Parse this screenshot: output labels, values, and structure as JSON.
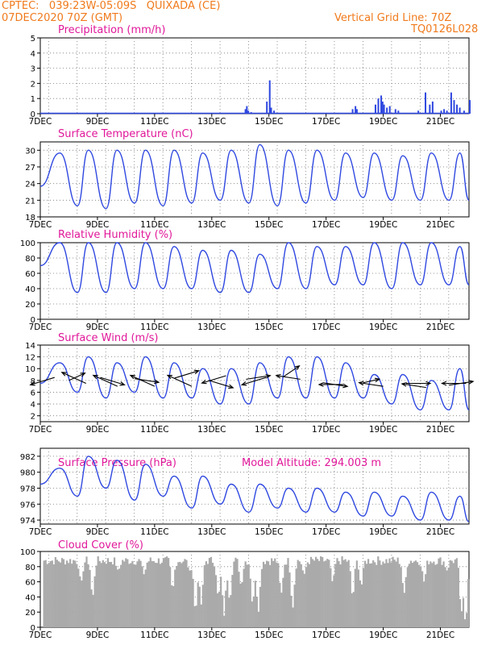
{
  "header": {
    "line1": "CPTEC:   039:23W-05:09S   QUIXADA (CE)",
    "line2_left": "07DEC2020 70Z (GMT)",
    "line2_right": "Vertical Grid Line: 70Z",
    "line3_right": "TQ0126L028"
  },
  "colors": {
    "series": "#2f48e0",
    "cloud": "#aaaaaa",
    "title": "#e0189a",
    "header": "#f07a1c"
  },
  "chart_data": [
    {
      "type": "bar",
      "title": "Precipitation (mm/h)",
      "x_ticks": [
        "7DEC",
        "9DEC",
        "11DEC",
        "13DEC",
        "15DEC",
        "17DEC",
        "19DEC",
        "21DEC"
      ],
      "x_day_range": [
        7,
        22
      ],
      "ylim": [
        0,
        5
      ],
      "yticks": [
        0,
        1,
        2,
        3,
        4,
        5
      ],
      "events": [
        [
          14.15,
          0.3
        ],
        [
          14.2,
          0.5
        ],
        [
          14.25,
          0.2
        ],
        [
          14.35,
          0.1
        ],
        [
          14.9,
          0.8
        ],
        [
          15.0,
          2.2
        ],
        [
          15.05,
          0.4
        ],
        [
          15.15,
          0.2
        ],
        [
          17.9,
          0.3
        ],
        [
          18.0,
          0.5
        ],
        [
          18.05,
          0.3
        ],
        [
          18.7,
          0.6
        ],
        [
          18.8,
          1.0
        ],
        [
          18.9,
          1.2
        ],
        [
          18.95,
          0.8
        ],
        [
          19.0,
          0.6
        ],
        [
          19.1,
          0.4
        ],
        [
          19.2,
          0.5
        ],
        [
          19.4,
          0.3
        ],
        [
          19.5,
          0.2
        ],
        [
          20.2,
          0.2
        ],
        [
          20.45,
          1.4
        ],
        [
          20.6,
          0.6
        ],
        [
          20.7,
          0.8
        ],
        [
          21.0,
          0.2
        ],
        [
          21.1,
          0.3
        ],
        [
          21.2,
          0.2
        ],
        [
          21.35,
          1.4
        ],
        [
          21.45,
          0.9
        ],
        [
          21.55,
          0.6
        ],
        [
          21.65,
          0.4
        ],
        [
          21.8,
          0.2
        ],
        [
          22.0,
          0.9
        ]
      ],
      "grid": true
    },
    {
      "type": "line",
      "title": "Surface Temperature (nC)",
      "x_ticks": [
        "7DEC",
        "9DEC",
        "11DEC",
        "13DEC",
        "15DEC",
        "17DEC",
        "19DEC",
        "21DEC"
      ],
      "x_day_range": [
        7,
        22
      ],
      "ylim": [
        18,
        31.5
      ],
      "yticks": [
        18,
        21,
        24,
        27,
        30
      ],
      "maxima": [
        29.5,
        30.0,
        30.0,
        30.0,
        30.0,
        29.5,
        30.0,
        31.0,
        30.0,
        30.0,
        29.5,
        29.5,
        29.0,
        29.5,
        29.5
      ],
      "minima": [
        20.0,
        19.5,
        20.5,
        20.0,
        20.5,
        21.0,
        20.5,
        20.0,
        20.5,
        21.0,
        21.5,
        21.0,
        21.0,
        21.0,
        21.0
      ],
      "start": 23.5,
      "grid": true
    },
    {
      "type": "line",
      "title": "Relative Humidity (%)",
      "x_ticks": [
        "7DEC",
        "9DEC",
        "11DEC",
        "13DEC",
        "15DEC",
        "17DEC",
        "19DEC",
        "21DEC"
      ],
      "x_day_range": [
        7,
        22
      ],
      "ylim": [
        0,
        100
      ],
      "yticks": [
        0,
        20,
        40,
        60,
        80,
        100
      ],
      "maxima": [
        100,
        100,
        100,
        100,
        95,
        90,
        90,
        85,
        100,
        95,
        95,
        100,
        100,
        100,
        95
      ],
      "minima": [
        35,
        35,
        40,
        40,
        40,
        35,
        35,
        40,
        40,
        45,
        45,
        40,
        45,
        45,
        45
      ],
      "start": 70,
      "grid": true
    },
    {
      "type": "line",
      "title": "Surface Wind (m/s)",
      "x_ticks": [
        "7DEC",
        "9DEC",
        "11DEC",
        "13DEC",
        "15DEC",
        "17DEC",
        "19DEC",
        "21DEC"
      ],
      "x_day_range": [
        7,
        22
      ],
      "ylim": [
        1,
        14
      ],
      "yticks": [
        2,
        4,
        6,
        8,
        10,
        12,
        14
      ],
      "maxima": [
        11,
        12,
        11,
        12,
        11,
        10,
        10,
        11,
        12,
        12,
        11,
        9,
        9,
        8,
        10
      ],
      "minima": [
        6,
        5,
        6,
        5,
        5,
        4,
        4,
        5,
        5,
        5,
        5,
        4,
        3,
        3,
        3
      ],
      "start": 7.5,
      "arrows": [
        [
          7.5,
          8.5,
          -3,
          -2
        ],
        [
          8.0,
          8.0,
          2,
          2
        ],
        [
          8.6,
          7.5,
          -3,
          3
        ],
        [
          9.1,
          8.5,
          3,
          -2
        ],
        [
          9.7,
          7.0,
          -3,
          3
        ],
        [
          10.3,
          8.3,
          3,
          -1
        ],
        [
          11.0,
          7.0,
          -3,
          3
        ],
        [
          11.7,
          8.4,
          3,
          2
        ],
        [
          12.3,
          7.0,
          -3,
          3
        ],
        [
          12.9,
          8.0,
          3,
          -2
        ],
        [
          13.5,
          8.8,
          -3,
          -2
        ],
        [
          14.2,
          8.2,
          3,
          1
        ],
        [
          14.9,
          8.5,
          -3,
          -2
        ],
        [
          15.5,
          8.6,
          2,
          3
        ],
        [
          16.1,
          8.2,
          -3,
          1
        ],
        [
          16.9,
          7.6,
          3,
          -1
        ],
        [
          17.6,
          7.3,
          -3,
          0
        ],
        [
          18.3,
          7.6,
          2,
          1
        ],
        [
          19.0,
          7.0,
          -3,
          1
        ],
        [
          19.8,
          7.5,
          3,
          0
        ],
        [
          20.5,
          6.8,
          -3,
          1
        ],
        [
          21.3,
          7.2,
          3,
          1
        ],
        [
          21.9,
          7.5,
          -3,
          0
        ]
      ],
      "grid": true
    },
    {
      "type": "line",
      "title": "Surface Pressure (hPa)",
      "annotation": "Model Altitude: 294.003 m",
      "x_ticks": [
        "7DEC",
        "9DEC",
        "11DEC",
        "13DEC",
        "15DEC",
        "17DEC",
        "19DEC",
        "21DEC"
      ],
      "x_day_range": [
        7,
        22
      ],
      "ylim": [
        973.5,
        983
      ],
      "yticks": [
        974,
        976,
        978,
        980,
        982
      ],
      "maxima": [
        980.5,
        982.0,
        981.5,
        981.0,
        979.5,
        979.5,
        978.5,
        978.5,
        978.0,
        978.0,
        977.5,
        977.5,
        977.0,
        977.5,
        977.0
      ],
      "minima": [
        977.0,
        978.0,
        976.5,
        977.0,
        975.5,
        976.0,
        975.0,
        975.5,
        975.0,
        975.0,
        974.5,
        974.5,
        974.0,
        974.0,
        973.8
      ],
      "start": 978.5,
      "grid": true
    },
    {
      "type": "area",
      "title": "Cloud Cover (%)",
      "x_ticks": [
        "7DEC",
        "9DEC",
        "11DEC",
        "13DEC",
        "15DEC",
        "17DEC",
        "19DEC",
        "21DEC"
      ],
      "x_day_range": [
        7,
        22
      ],
      "ylim": [
        0,
        100
      ],
      "yticks": [
        0,
        20,
        40,
        60,
        80,
        100
      ],
      "base_level": 88,
      "dips": [
        [
          8.4,
          60
        ],
        [
          8.8,
          40
        ],
        [
          9.7,
          75
        ],
        [
          10.6,
          70
        ],
        [
          11.6,
          50
        ],
        [
          12.2,
          75
        ],
        [
          12.4,
          20
        ],
        [
          12.6,
          30
        ],
        [
          13.2,
          40
        ],
        [
          13.4,
          15
        ],
        [
          13.6,
          35
        ],
        [
          14.0,
          55
        ],
        [
          14.4,
          30
        ],
        [
          14.6,
          20
        ],
        [
          15.4,
          45
        ],
        [
          15.8,
          25
        ],
        [
          16.2,
          70
        ],
        [
          17.2,
          60
        ],
        [
          17.9,
          40
        ],
        [
          18.2,
          55
        ],
        [
          19.7,
          45
        ],
        [
          20.4,
          60
        ],
        [
          21.2,
          75
        ],
        [
          21.7,
          20
        ],
        [
          21.85,
          5
        ]
      ],
      "grid": true
    }
  ]
}
